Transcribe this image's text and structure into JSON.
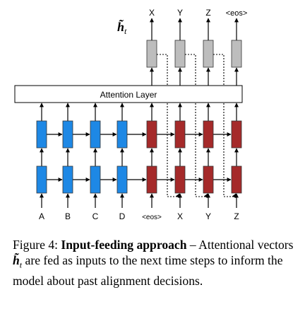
{
  "figure": {
    "input_labels": [
      "A",
      "B",
      "C",
      "D",
      "<eos>",
      "X",
      "Y",
      "Z"
    ],
    "output_labels": [
      "X",
      "Y",
      "Z",
      "<eos>"
    ],
    "attention_label": "Attention Layer",
    "attentional_vector_label": "h̃",
    "attentional_vector_subscript": "t",
    "colors": {
      "encoder": "#1e88e5",
      "decoder": "#a52a2a",
      "attentional": "#bdbdbd"
    }
  },
  "caption": {
    "prefix": "Figure 4: ",
    "title": "Input-feeding approach",
    "part1": " – Attentional vectors ",
    "math_symbol": "h̃",
    "math_subscript": "t",
    "part2": " are fed as inputs to the next time steps to inform the model about past alignment decisions."
  }
}
